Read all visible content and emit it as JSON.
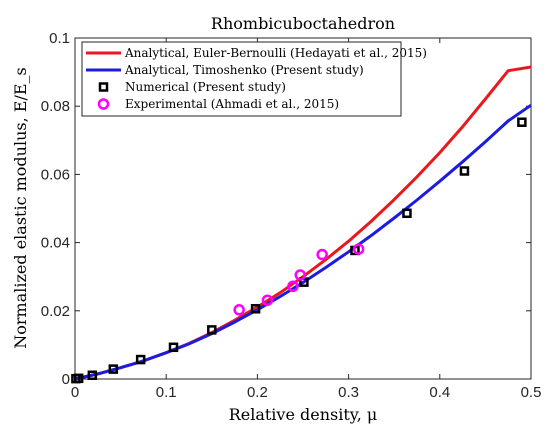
{
  "chart_data": {
    "type": "line",
    "title": "Rhombicuboctahedron",
    "xlabel": "Relative density, μ",
    "ylabel": "Normalized elastic modulus, E/E_s",
    "xlim": [
      0,
      0.5
    ],
    "ylim": [
      0,
      0.1
    ],
    "xticks": [
      "0",
      "0.1",
      "0.2",
      "0.3",
      "0.4",
      "0.5"
    ],
    "yticks": [
      "0",
      "0.02",
      "0.04",
      "0.06",
      "0.08",
      "0.1"
    ],
    "grid": false,
    "legend_position": "top-left",
    "series": [
      {
        "name": "Analytical, Euler-Bernoulli (Hedayati et al., 2015)",
        "kind": "line",
        "color": "#e8191e",
        "x": [
          0,
          0.025,
          0.05,
          0.075,
          0.1,
          0.125,
          0.15,
          0.175,
          0.2,
          0.225,
          0.25,
          0.275,
          0.3,
          0.325,
          0.35,
          0.375,
          0.4,
          0.425,
          0.45,
          0.475,
          0.5
        ],
        "y": [
          0,
          0.0015,
          0.0033,
          0.0053,
          0.0077,
          0.0104,
          0.0136,
          0.0172,
          0.0211,
          0.0253,
          0.03,
          0.035,
          0.0404,
          0.0463,
          0.0526,
          0.0593,
          0.0664,
          0.074,
          0.0821,
          0.0904,
          0.0915
        ]
      },
      {
        "name": "Analytical, Timoshenko (Present study)",
        "kind": "line",
        "color": "#1c1ce0",
        "x": [
          0,
          0.025,
          0.05,
          0.075,
          0.1,
          0.125,
          0.15,
          0.175,
          0.2,
          0.225,
          0.25,
          0.275,
          0.3,
          0.325,
          0.35,
          0.375,
          0.4,
          0.425,
          0.45,
          0.475,
          0.5
        ],
        "y": [
          0,
          0.0015,
          0.0033,
          0.0053,
          0.0077,
          0.0103,
          0.0133,
          0.0167,
          0.0203,
          0.0242,
          0.0283,
          0.0327,
          0.0373,
          0.0421,
          0.0472,
          0.0525,
          0.058,
          0.0637,
          0.0696,
          0.0757,
          0.0803
        ]
      },
      {
        "name": "Numerical (Present study)",
        "kind": "marker",
        "marker": "square",
        "color": "#000000",
        "x": [
          0.001,
          0.004,
          0.019,
          0.042,
          0.072,
          0.108,
          0.15,
          0.198,
          0.251,
          0.307,
          0.364,
          0.427,
          0.49
        ],
        "y": [
          0.0001,
          0.0002,
          0.0011,
          0.0029,
          0.0057,
          0.0093,
          0.0144,
          0.0206,
          0.0284,
          0.0377,
          0.0486,
          0.061,
          0.0753
        ]
      },
      {
        "name": "Experimental (Ahmadi et al., 2015)",
        "kind": "marker",
        "marker": "circle",
        "color": "#ff00ff",
        "x": [
          0.18,
          0.211,
          0.239,
          0.247,
          0.271,
          0.311
        ],
        "y": [
          0.0203,
          0.0231,
          0.0272,
          0.0305,
          0.0365,
          0.0381
        ]
      }
    ]
  }
}
